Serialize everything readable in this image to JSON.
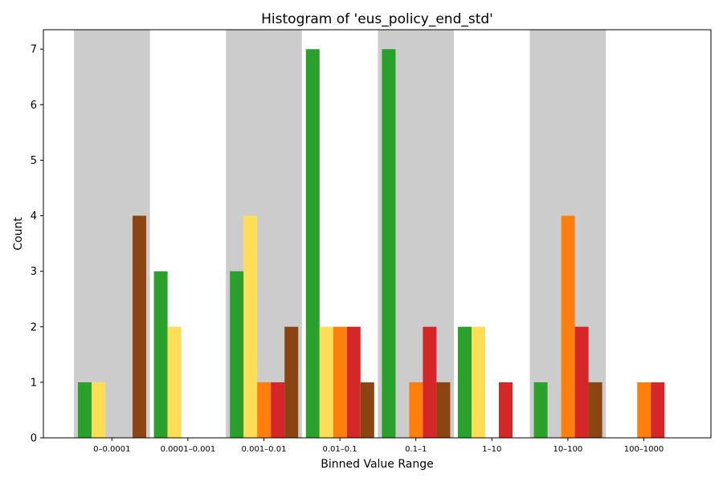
{
  "chart_data": {
    "type": "bar",
    "title": "Histogram of 'eus_policy_end_std'",
    "xlabel": "Binned Value Range",
    "ylabel": "Count",
    "ylim": [
      0,
      7.35
    ],
    "yticks": [
      0,
      1,
      2,
      3,
      4,
      5,
      6,
      7
    ],
    "categories": [
      "0–0.0001",
      "0.0001–0.001",
      "0.001–0.01",
      "0.01–0.1",
      "0.1–1",
      "1–10",
      "10–100",
      "100–1000"
    ],
    "band_shading": {
      "color": "#cccccc",
      "alternate": "even-indexed bins shaded"
    },
    "series": [
      {
        "color": "#2ca02c",
        "values": [
          1,
          3,
          3,
          7,
          7,
          2,
          1,
          0
        ]
      },
      {
        "color": "#ffdd57",
        "values": [
          1,
          2,
          4,
          2,
          0,
          2,
          0,
          0
        ]
      },
      {
        "color": "#ff7f0e",
        "values": [
          0,
          0,
          1,
          2,
          1,
          0,
          4,
          1
        ]
      },
      {
        "color": "#d62728",
        "values": [
          0,
          0,
          1,
          2,
          2,
          1,
          2,
          1
        ]
      },
      {
        "color": "#8b4513",
        "values": [
          4,
          0,
          2,
          1,
          1,
          0,
          1,
          0
        ]
      }
    ],
    "grid": false,
    "legend": "none"
  }
}
